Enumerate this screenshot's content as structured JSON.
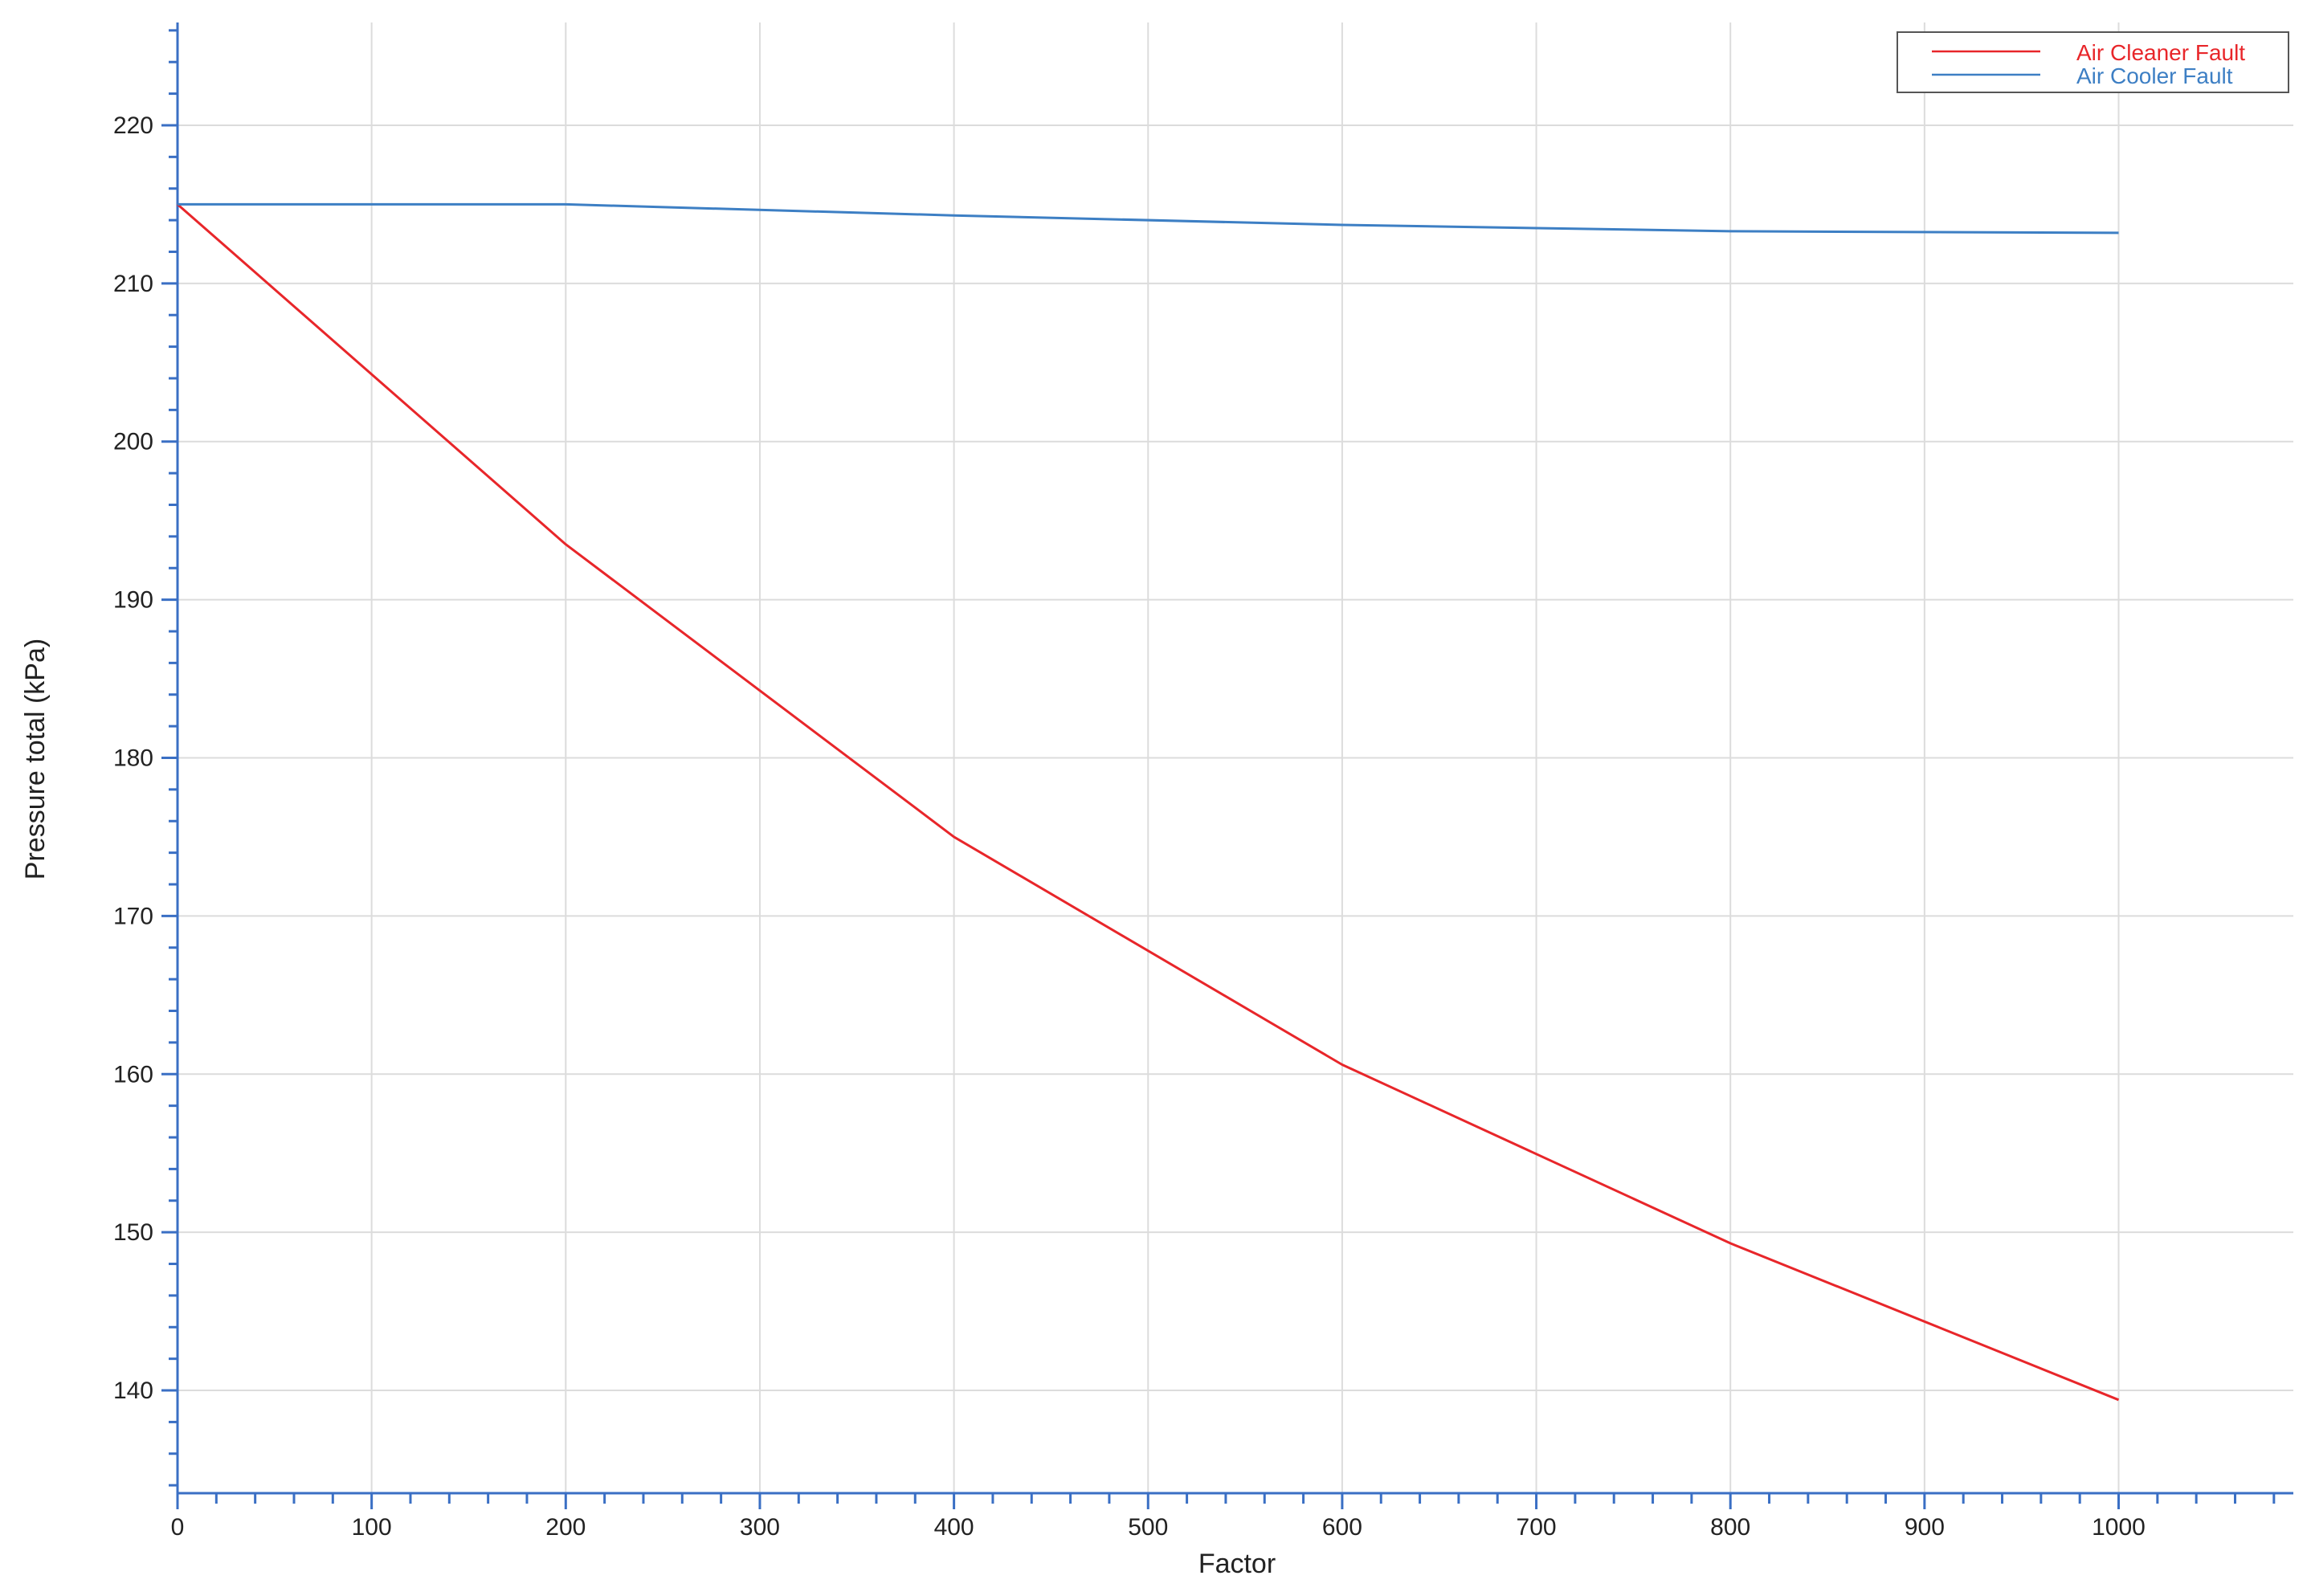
{
  "chart_data": {
    "type": "line",
    "xlabel": "Factor",
    "ylabel": "Pressure total (kPa)",
    "xlim": [
      0,
      1090
    ],
    "ylim": [
      133.5,
      226.5
    ],
    "xticks": [
      0,
      100,
      200,
      300,
      400,
      500,
      600,
      700,
      800,
      900,
      1000
    ],
    "yticks": [
      140,
      150,
      160,
      170,
      180,
      190,
      200,
      210,
      220
    ],
    "grid": true,
    "legend_position": "top-right",
    "x": [
      0,
      200,
      400,
      600,
      800,
      1000
    ],
    "series": [
      {
        "name": "Air Cleaner Fault",
        "color": "#e8262a",
        "values": [
          215.0,
          193.5,
          175.0,
          160.6,
          149.3,
          139.4
        ]
      },
      {
        "name": "Air Cooler Fault",
        "color": "#3d7fc4",
        "values": [
          215.0,
          215.0,
          214.3,
          213.7,
          213.3,
          213.2
        ]
      }
    ]
  }
}
